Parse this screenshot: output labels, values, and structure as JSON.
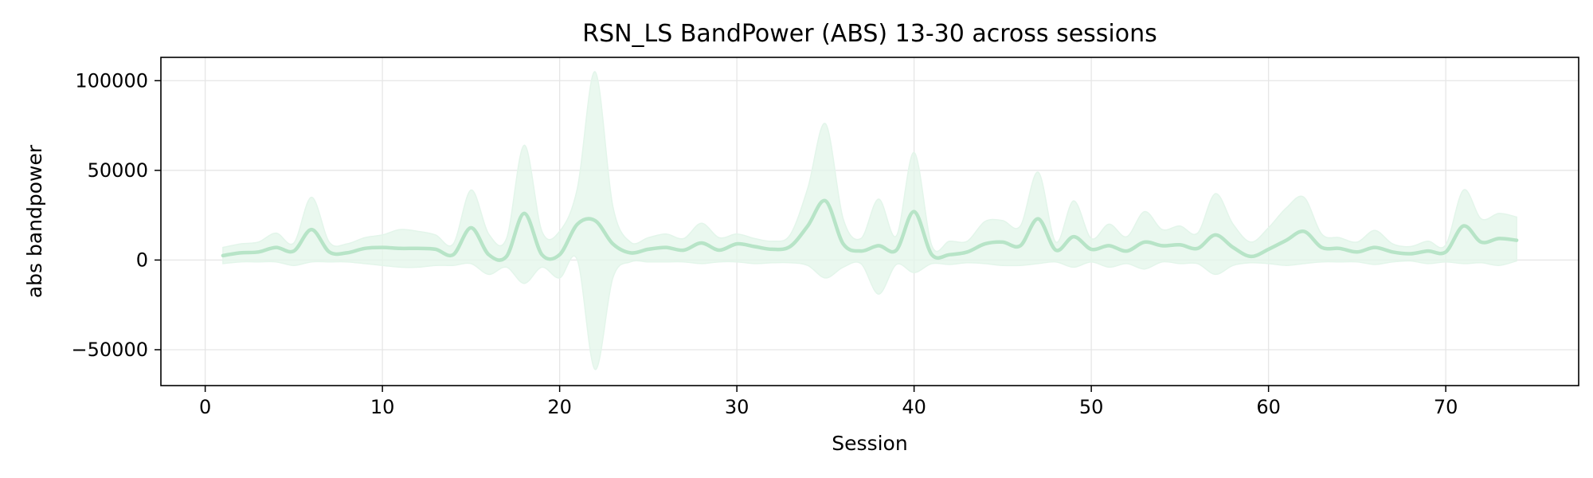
{
  "chart_data": {
    "type": "line",
    "title": "RSN_LS BandPower (ABS) 13-30 across sessions",
    "xlabel": "Session",
    "ylabel": "abs bandpower",
    "xlim": [
      -2.5,
      77.5
    ],
    "ylim": [
      -70000,
      113000
    ],
    "xticks": [
      0,
      10,
      20,
      30,
      40,
      50,
      60,
      70
    ],
    "yticks": [
      -50000,
      0,
      50000,
      100000
    ],
    "ytick_labels": [
      "−50000",
      "0",
      "50000",
      "100000"
    ],
    "grid": true,
    "legend": "none",
    "colors": {
      "line": "#b7e4c7",
      "band": "#e3f5ea",
      "grid": "#e6e6e6"
    },
    "series": [
      {
        "x": [
          1,
          2,
          3,
          4,
          5,
          6,
          7,
          8,
          9,
          10,
          11,
          12,
          13,
          14,
          15,
          16,
          17,
          18,
          19,
          20,
          21,
          22,
          23,
          24,
          25,
          26,
          27,
          28,
          29,
          30,
          31,
          32,
          33,
          34,
          35,
          36,
          37,
          38,
          39,
          40,
          41,
          42,
          43,
          44,
          45,
          46,
          47,
          48,
          49,
          50,
          51,
          52,
          53,
          54,
          55,
          56,
          57,
          58,
          59,
          60,
          61,
          62,
          63,
          64,
          65,
          66,
          67,
          68,
          69,
          70,
          71,
          72,
          73,
          74
        ],
        "mean": [
          2500,
          4000,
          4500,
          7000,
          5000,
          17000,
          4500,
          4000,
          6500,
          7000,
          6500,
          6500,
          6000,
          3000,
          18000,
          3000,
          2000,
          26000,
          3000,
          3000,
          20000,
          22000,
          9000,
          4000,
          6000,
          7000,
          5500,
          9500,
          5500,
          9000,
          7500,
          6000,
          7500,
          19000,
          33000,
          9000,
          5000,
          8000,
          5500,
          27000,
          3000,
          3000,
          4500,
          9000,
          10000,
          8000,
          23000,
          5500,
          13000,
          6000,
          8000,
          5000,
          10000,
          8000,
          8500,
          6500,
          14000,
          7000,
          2000,
          6000,
          11000,
          16000,
          7000,
          6500,
          4500,
          7000,
          4500,
          3500,
          5000,
          4500,
          19000,
          10000,
          12000,
          11000
        ],
        "upper": [
          7000,
          9000,
          10000,
          15000,
          9500,
          35000,
          10000,
          9000,
          12500,
          14000,
          17000,
          16000,
          14000,
          9000,
          39000,
          14500,
          12000,
          64000,
          16000,
          16000,
          40000,
          105000,
          30000,
          10000,
          12500,
          14500,
          12000,
          20500,
          12500,
          14500,
          12000,
          10500,
          14000,
          40000,
          76000,
          23000,
          12000,
          34000,
          13500,
          60000,
          8000,
          10500,
          10500,
          21500,
          22000,
          19000,
          49000,
          10000,
          33000,
          12000,
          20000,
          13000,
          27000,
          17000,
          19000,
          15000,
          37000,
          20000,
          10000,
          18000,
          29000,
          35000,
          14500,
          12500,
          10000,
          16500,
          9000,
          7500,
          10500,
          8500,
          39000,
          23000,
          26000,
          24000
        ],
        "lower": [
          -2000,
          -1000,
          -1000,
          -1000,
          -3000,
          -1000,
          -1000,
          -1000,
          -2000,
          -3000,
          -4000,
          -4000,
          -3000,
          -3000,
          -2000,
          -8000,
          -4000,
          -13000,
          -4000,
          -10000,
          0,
          -61000,
          -10000,
          -1000,
          -1000,
          -1000,
          -1000,
          -2000,
          -1000,
          -1000,
          -2000,
          -1500,
          -1500,
          -3000,
          -10000,
          -4000,
          -2000,
          -19000,
          -2500,
          -7000,
          -2000,
          -2500,
          -1500,
          -2000,
          -3000,
          -3000,
          -2000,
          -1000,
          -4000,
          -1000,
          -4000,
          -2000,
          -5000,
          -1000,
          -2000,
          -2000,
          -8000,
          -3000,
          -1500,
          -2000,
          -3000,
          -2000,
          -1000,
          -1000,
          -1000,
          -2500,
          -1000,
          -500,
          -2000,
          -1000,
          -2000,
          -1500,
          -3000,
          -500
        ]
      }
    ]
  }
}
